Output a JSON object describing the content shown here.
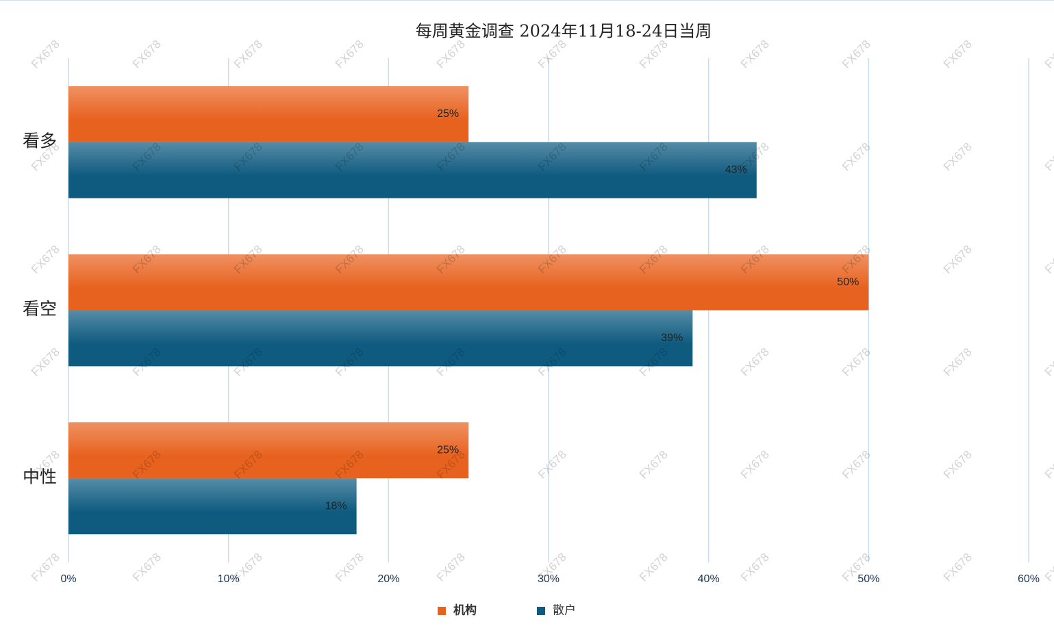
{
  "chart_data": {
    "type": "barh",
    "title": "每周黄金调查 2024年11月18-24日当周",
    "categories": [
      "看多",
      "看空",
      "中性"
    ],
    "series": [
      {
        "name": "机构",
        "color": "#e8621f",
        "values": [
          25,
          50,
          25
        ],
        "value_labels": [
          "25%",
          "50%",
          "25%"
        ]
      },
      {
        "name": "散户",
        "color": "#0f5b80",
        "values": [
          43,
          39,
          18
        ],
        "value_labels": [
          "43%",
          "39%",
          "18%"
        ]
      }
    ],
    "xlim": [
      0,
      60
    ],
    "xticks": [
      {
        "value": 0,
        "label": "0%"
      },
      {
        "value": 10,
        "label": "10%"
      },
      {
        "value": 20,
        "label": "20%"
      },
      {
        "value": 30,
        "label": "30%"
      },
      {
        "value": 40,
        "label": "40%"
      },
      {
        "value": 50,
        "label": "50%"
      },
      {
        "value": 60,
        "label": "60%"
      }
    ],
    "grid": true,
    "legend": "bottom",
    "watermark": "FX678"
  }
}
